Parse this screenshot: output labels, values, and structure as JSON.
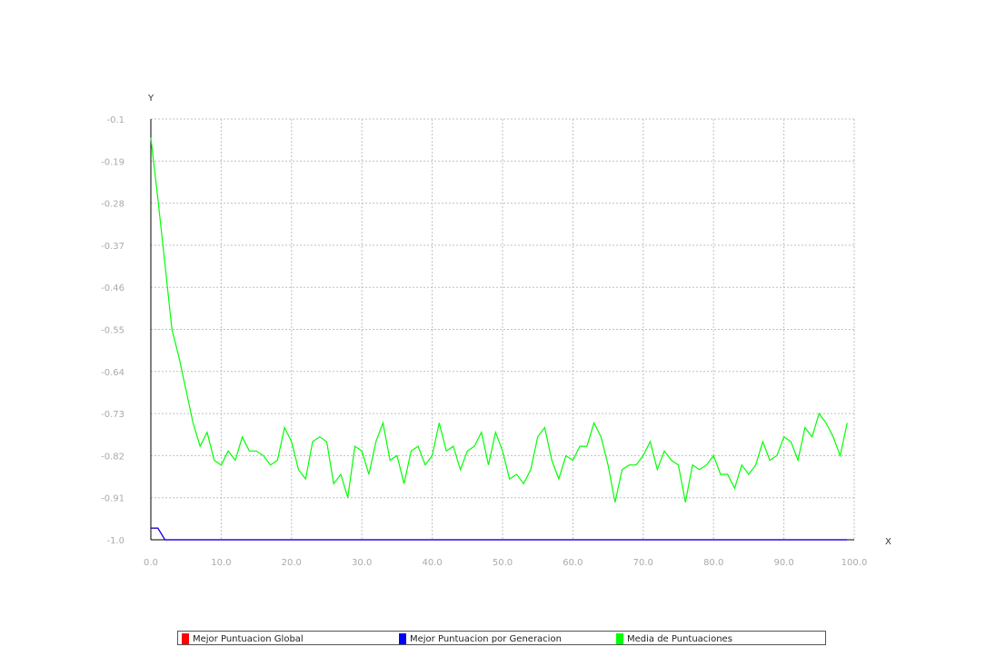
{
  "chart_data": {
    "type": "line",
    "xlabel": "X",
    "ylabel": "Y",
    "xlim": [
      0,
      100
    ],
    "ylim": [
      -1.0,
      -0.1
    ],
    "x_ticks": [
      0,
      10,
      20,
      30,
      40,
      50,
      60,
      70,
      80,
      90,
      100
    ],
    "x_tick_labels": [
      "0.0",
      "10.0",
      "20.0",
      "30.0",
      "40.0",
      "50.0",
      "60.0",
      "70.0",
      "80.0",
      "90.0",
      "100.0"
    ],
    "y_ticks": [
      -1.0,
      -0.91,
      -0.82,
      -0.73,
      -0.64,
      -0.55,
      -0.46,
      -0.37,
      -0.28,
      -0.19,
      -0.1
    ],
    "y_tick_labels": [
      "-1.0",
      "-0.91",
      "-0.82",
      "-0.73",
      "-0.64",
      "-0.55",
      "-0.46",
      "-0.37",
      "-0.28",
      "-0.19",
      "-0.1"
    ],
    "grid": true,
    "legend_position": "bottom",
    "x": [
      0,
      1,
      2,
      3,
      4,
      5,
      6,
      7,
      8,
      9,
      10,
      11,
      12,
      13,
      14,
      15,
      16,
      17,
      18,
      19,
      20,
      21,
      22,
      23,
      24,
      25,
      26,
      27,
      28,
      29,
      30,
      31,
      32,
      33,
      34,
      35,
      36,
      37,
      38,
      39,
      40,
      41,
      42,
      43,
      44,
      45,
      46,
      47,
      48,
      49,
      50,
      51,
      52,
      53,
      54,
      55,
      56,
      57,
      58,
      59,
      60,
      61,
      62,
      63,
      64,
      65,
      66,
      67,
      68,
      69,
      70,
      71,
      72,
      73,
      74,
      75,
      76,
      77,
      78,
      79,
      80,
      81,
      82,
      83,
      84,
      85,
      86,
      87,
      88,
      89,
      90,
      91,
      92,
      93,
      94,
      95,
      96,
      97,
      98,
      99
    ],
    "series": [
      {
        "name": "Mejor Puntuacion Global",
        "color": "#ff0000",
        "values": [
          -0.975,
          -0.975,
          -1.0,
          -1.0,
          -1.0,
          -1.0,
          -1.0,
          -1.0,
          -1.0,
          -1.0,
          -1.0,
          -1.0,
          -1.0,
          -1.0,
          -1.0,
          -1.0,
          -1.0,
          -1.0,
          -1.0,
          -1.0,
          -1.0,
          -1.0,
          -1.0,
          -1.0,
          -1.0,
          -1.0,
          -1.0,
          -1.0,
          -1.0,
          -1.0,
          -1.0,
          -1.0,
          -1.0,
          -1.0,
          -1.0,
          -1.0,
          -1.0,
          -1.0,
          -1.0,
          -1.0,
          -1.0,
          -1.0,
          -1.0,
          -1.0,
          -1.0,
          -1.0,
          -1.0,
          -1.0,
          -1.0,
          -1.0,
          -1.0,
          -1.0,
          -1.0,
          -1.0,
          -1.0,
          -1.0,
          -1.0,
          -1.0,
          -1.0,
          -1.0,
          -1.0,
          -1.0,
          -1.0,
          -1.0,
          -1.0,
          -1.0,
          -1.0,
          -1.0,
          -1.0,
          -1.0,
          -1.0,
          -1.0,
          -1.0,
          -1.0,
          -1.0,
          -1.0,
          -1.0,
          -1.0,
          -1.0,
          -1.0,
          -1.0,
          -1.0,
          -1.0,
          -1.0,
          -1.0,
          -1.0,
          -1.0,
          -1.0,
          -1.0,
          -1.0,
          -1.0,
          -1.0,
          -1.0,
          -1.0,
          -1.0,
          -1.0,
          -1.0,
          -1.0,
          -1.0,
          -1.0
        ]
      },
      {
        "name": "Mejor Puntuacion por Generacion",
        "color": "#0000ff",
        "values": [
          -0.975,
          -0.975,
          -1.0,
          -1.0,
          -1.0,
          -1.0,
          -1.0,
          -1.0,
          -1.0,
          -1.0,
          -1.0,
          -1.0,
          -1.0,
          -1.0,
          -1.0,
          -1.0,
          -1.0,
          -1.0,
          -1.0,
          -1.0,
          -1.0,
          -1.0,
          -1.0,
          -1.0,
          -1.0,
          -1.0,
          -1.0,
          -1.0,
          -1.0,
          -1.0,
          -1.0,
          -1.0,
          -1.0,
          -1.0,
          -1.0,
          -1.0,
          -1.0,
          -1.0,
          -1.0,
          -1.0,
          -1.0,
          -1.0,
          -1.0,
          -1.0,
          -1.0,
          -1.0,
          -1.0,
          -1.0,
          -1.0,
          -1.0,
          -1.0,
          -1.0,
          -1.0,
          -1.0,
          -1.0,
          -1.0,
          -1.0,
          -1.0,
          -1.0,
          -1.0,
          -1.0,
          -1.0,
          -1.0,
          -1.0,
          -1.0,
          -1.0,
          -1.0,
          -1.0,
          -1.0,
          -1.0,
          -1.0,
          -1.0,
          -1.0,
          -1.0,
          -1.0,
          -1.0,
          -1.0,
          -1.0,
          -1.0,
          -1.0,
          -1.0,
          -1.0,
          -1.0,
          -1.0,
          -1.0,
          -1.0,
          -1.0,
          -1.0,
          -1.0,
          -1.0,
          -1.0,
          -1.0,
          -1.0,
          -1.0,
          -1.0,
          -1.0,
          -1.0,
          -1.0,
          -1.0,
          -1.0
        ]
      },
      {
        "name": "Media de Puntuaciones",
        "color": "#00ff00",
        "values": [
          -0.14,
          -0.27,
          -0.41,
          -0.55,
          -0.61,
          -0.68,
          -0.75,
          -0.8,
          -0.77,
          -0.83,
          -0.84,
          -0.81,
          -0.83,
          -0.78,
          -0.81,
          -0.81,
          -0.82,
          -0.84,
          -0.83,
          -0.76,
          -0.79,
          -0.85,
          -0.87,
          -0.79,
          -0.78,
          -0.79,
          -0.88,
          -0.86,
          -0.91,
          -0.8,
          -0.81,
          -0.86,
          -0.79,
          -0.75,
          -0.83,
          -0.82,
          -0.88,
          -0.81,
          -0.8,
          -0.84,
          -0.82,
          -0.75,
          -0.81,
          -0.8,
          -0.85,
          -0.81,
          -0.8,
          -0.77,
          -0.84,
          -0.77,
          -0.81,
          -0.87,
          -0.86,
          -0.88,
          -0.85,
          -0.78,
          -0.76,
          -0.83,
          -0.87,
          -0.82,
          -0.83,
          -0.8,
          -0.8,
          -0.75,
          -0.78,
          -0.84,
          -0.92,
          -0.85,
          -0.84,
          -0.84,
          -0.82,
          -0.79,
          -0.85,
          -0.81,
          -0.83,
          -0.84,
          -0.92,
          -0.84,
          -0.85,
          -0.84,
          -0.82,
          -0.86,
          -0.86,
          -0.89,
          -0.84,
          -0.86,
          -0.84,
          -0.79,
          -0.83,
          -0.82,
          -0.78,
          -0.79,
          -0.83,
          -0.76,
          -0.78,
          -0.73,
          -0.75,
          -0.78,
          -0.82,
          -0.75
        ]
      }
    ]
  }
}
